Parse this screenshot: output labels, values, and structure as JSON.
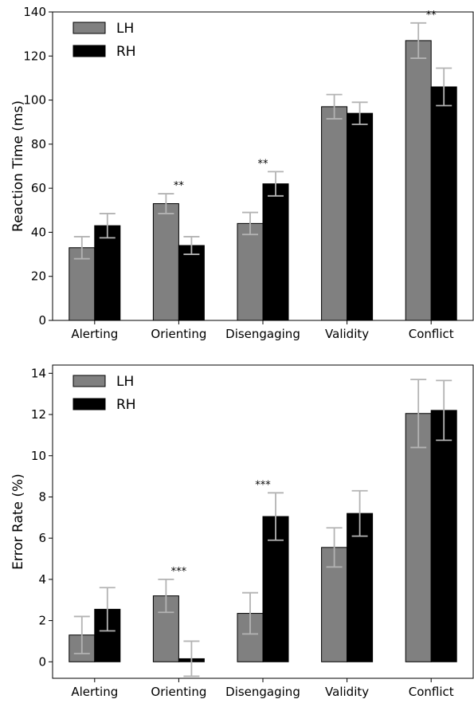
{
  "chart_data": [
    {
      "type": "bar",
      "ylabel": "Reaction Time (ms)",
      "ylim": [
        0,
        140
      ],
      "yticks": [
        0,
        20,
        40,
        60,
        80,
        100,
        120,
        140
      ],
      "categories": [
        "Alerting",
        "Orienting",
        "Disengaging",
        "Validity",
        "Conflict"
      ],
      "series": [
        {
          "name": "LH",
          "color": "#808080",
          "values": [
            33,
            53,
            44,
            97,
            127
          ],
          "errors": [
            5,
            4.5,
            5,
            5.5,
            8
          ]
        },
        {
          "name": "RH",
          "color": "#000000",
          "values": [
            43,
            34,
            62,
            94,
            106
          ],
          "errors": [
            5.5,
            4,
            5.5,
            5,
            8.5
          ]
        }
      ],
      "significance": [
        "",
        "**",
        "**",
        "",
        "**"
      ],
      "legend": "top-left",
      "errorbar_color": "#b3b3b3"
    },
    {
      "type": "bar",
      "ylabel": "Error Rate (%)",
      "ylim": [
        -0.8,
        14.4
      ],
      "yticks": [
        0,
        2,
        4,
        6,
        8,
        10,
        12,
        14
      ],
      "categories": [
        "Alerting",
        "Orienting",
        "Disengaging",
        "Validity",
        "Conflict"
      ],
      "series": [
        {
          "name": "LH",
          "color": "#808080",
          "values": [
            1.3,
            3.2,
            2.35,
            5.55,
            12.05
          ],
          "errors": [
            0.9,
            0.8,
            1.0,
            0.95,
            1.65
          ]
        },
        {
          "name": "RH",
          "color": "#000000",
          "values": [
            2.55,
            0.15,
            7.05,
            7.2,
            12.2
          ],
          "errors": [
            1.05,
            0.85,
            1.15,
            1.1,
            1.45
          ]
        }
      ],
      "significance": [
        "",
        "***",
        "***",
        "",
        ""
      ],
      "legend": "top-left",
      "errorbar_color": "#b3b3b3"
    }
  ]
}
